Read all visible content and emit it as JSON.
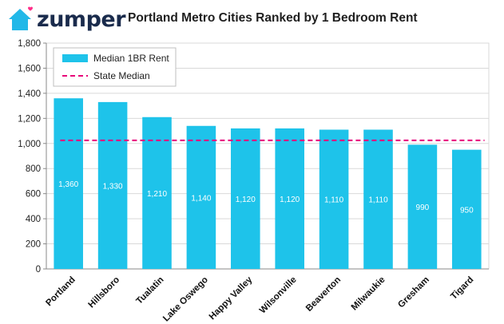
{
  "brand": {
    "name": "zumper",
    "logo_icon": "house-heart-icon",
    "logo_color": "#22b8e8",
    "heart_color": "#ff2d88"
  },
  "chart_data": {
    "type": "bar",
    "title": "Portland Metro Cities Ranked by 1 Bedroom Rent",
    "xlabel": "",
    "ylabel": "",
    "categories": [
      "Portland",
      "Hillsboro",
      "Tualatin",
      "Lake Oswego",
      "Happy Valley",
      "Wilsonville",
      "Beaverton",
      "Milwaukie",
      "Gresham",
      "Tigard"
    ],
    "series": [
      {
        "name": "Median 1BR Rent",
        "values": [
          1360,
          1330,
          1210,
          1140,
          1120,
          1120,
          1110,
          1110,
          990,
          950
        ],
        "color": "#1ec3ea"
      }
    ],
    "data_labels": [
      "1,360",
      "1,330",
      "1,210",
      "1,140",
      "1,120",
      "1,120",
      "1,110",
      "1,110",
      "990",
      "950"
    ],
    "reference_line": {
      "name": "State Median",
      "value": 1025,
      "color": "#e8007a",
      "style": "dashed"
    },
    "ylim": [
      0,
      1800
    ],
    "yticks": [
      0,
      200,
      400,
      600,
      800,
      1000,
      1200,
      1400,
      1600,
      1800
    ],
    "ytick_labels": [
      "0",
      "200",
      "400",
      "600",
      "800",
      "1,000",
      "1,200",
      "1,400",
      "1,600",
      "1,800"
    ],
    "grid": true,
    "legend": {
      "position": "top-left",
      "entries": [
        "Median 1BR Rent",
        "State Median"
      ]
    }
  }
}
